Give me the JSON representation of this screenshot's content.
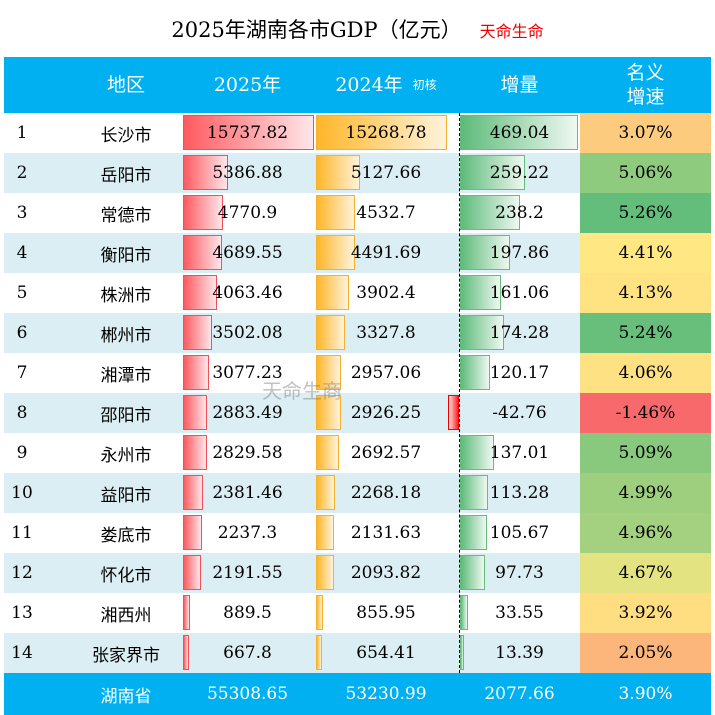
{
  "title": "2025年湖南各市GDP（亿元）",
  "brand": "天命生命",
  "watermark": "天命生商",
  "headers": {
    "region": "地区",
    "y2025": "2025年",
    "y2024": "2024年",
    "y2024_note": "初核",
    "growth": "增量",
    "rate_line1": "名义",
    "rate_line2": "增速"
  },
  "colors": {
    "header": "#00B0F0",
    "alt_row": "#DAEEF3",
    "rate_low": "#F8696B",
    "rate_mid": "#FFEB84",
    "rate_high": "#63BE7B"
  },
  "chart_data": {
    "type": "table",
    "columns": [
      "",
      "地区",
      "2025年",
      "2024年 初核",
      "增量",
      "名义增速"
    ],
    "rows": [
      {
        "rank": "1",
        "name": "长沙市",
        "v2025": 15737.82,
        "v2024": 15268.78,
        "growth": 469.04,
        "rate": 3.07
      },
      {
        "rank": "2",
        "name": "岳阳市",
        "v2025": 5386.88,
        "v2024": 5127.66,
        "growth": 259.22,
        "rate": 5.06
      },
      {
        "rank": "3",
        "name": "常德市",
        "v2025": 4770.9,
        "v2024": 4532.7,
        "growth": 238.2,
        "rate": 5.26
      },
      {
        "rank": "4",
        "name": "衡阳市",
        "v2025": 4689.55,
        "v2024": 4491.69,
        "growth": 197.86,
        "rate": 4.41
      },
      {
        "rank": "5",
        "name": "株洲市",
        "v2025": 4063.46,
        "v2024": 3902.4,
        "growth": 161.06,
        "rate": 4.13
      },
      {
        "rank": "6",
        "name": "郴州市",
        "v2025": 3502.08,
        "v2024": 3327.8,
        "growth": 174.28,
        "rate": 5.24
      },
      {
        "rank": "7",
        "name": "湘潭市",
        "v2025": 3077.23,
        "v2024": 2957.06,
        "growth": 120.17,
        "rate": 4.06
      },
      {
        "rank": "8",
        "name": "邵阳市",
        "v2025": 2883.49,
        "v2024": 2926.25,
        "growth": -42.76,
        "rate": -1.46
      },
      {
        "rank": "9",
        "name": "永州市",
        "v2025": 2829.58,
        "v2024": 2692.57,
        "growth": 137.01,
        "rate": 5.09
      },
      {
        "rank": "10",
        "name": "益阳市",
        "v2025": 2381.46,
        "v2024": 2268.18,
        "growth": 113.28,
        "rate": 4.99
      },
      {
        "rank": "11",
        "name": "娄底市",
        "v2025": 2237.3,
        "v2024": 2131.63,
        "growth": 105.67,
        "rate": 4.96
      },
      {
        "rank": "12",
        "name": "怀化市",
        "v2025": 2191.55,
        "v2024": 2093.82,
        "growth": 97.73,
        "rate": 4.67
      },
      {
        "rank": "13",
        "name": "湘西州",
        "v2025": 889.5,
        "v2024": 855.95,
        "growth": 33.55,
        "rate": 3.92
      },
      {
        "rank": "14",
        "name": "张家界市",
        "v2025": 667.8,
        "v2024": 654.41,
        "growth": 13.39,
        "rate": 2.05
      }
    ],
    "total": {
      "name": "湖南省",
      "v2025": "55308.65",
      "v2024": "53230.99",
      "growth": "2077.66",
      "rate": "3.90%"
    }
  }
}
